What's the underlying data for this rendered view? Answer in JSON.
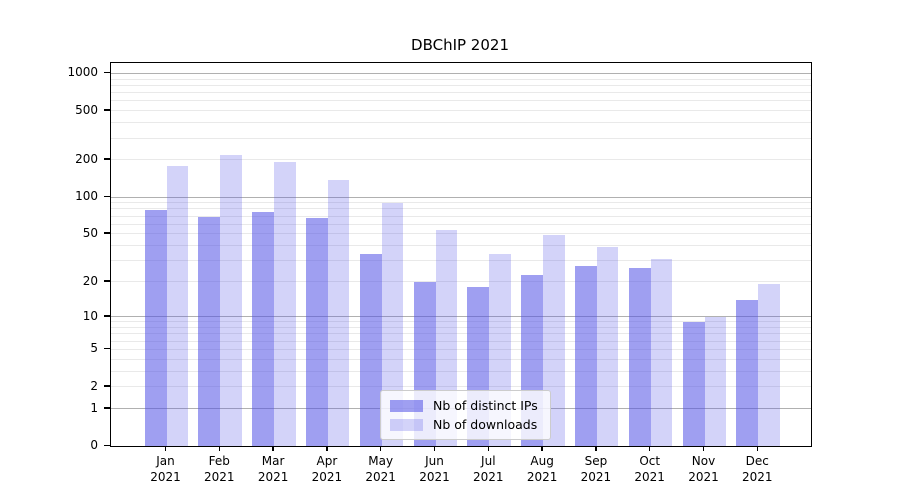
{
  "figure": {
    "title": "DBChIP 2021",
    "background_color": "#ffffff",
    "frame_color": "#000000",
    "grid_major_color": "#b0b0b0",
    "grid_minor_color": "#e9e9e9"
  },
  "chart_data": {
    "type": "bar",
    "title": "DBChIP 2021",
    "xlabel": "",
    "ylabel": "",
    "categories": [
      "Jan 2021",
      "Feb 2021",
      "Mar 2021",
      "Apr 2021",
      "May 2021",
      "Jun 2021",
      "Jul 2021",
      "Aug 2021",
      "Sep 2021",
      "Oct 2021",
      "Nov 2021",
      "Dec 2021"
    ],
    "series": [
      {
        "name": "Nb of distinct IPs",
        "color": "rgba(80,80,230,0.55)",
        "values": [
          78,
          69,
          76,
          68,
          34,
          20,
          18,
          23,
          27,
          26,
          9,
          14
        ]
      },
      {
        "name": "Nb of downloads",
        "color": "rgba(80,80,230,0.25)",
        "values": [
          178,
          220,
          192,
          137,
          89,
          54,
          34,
          49,
          39,
          31,
          10,
          19
        ]
      }
    ],
    "yscale": "log10(1+x)",
    "y_ticks": [
      0,
      1,
      2,
      5,
      10,
      20,
      50,
      100,
      200,
      500,
      1000
    ],
    "y_grid_major": [
      1,
      10,
      100,
      1000
    ],
    "ylim": [
      0,
      1200
    ],
    "grid": "horizontal",
    "legend_position": "lower-center-inside"
  },
  "legend": {
    "items": [
      {
        "label": "Nb of distinct IPs",
        "color": "rgba(80,80,230,0.55)"
      },
      {
        "label": "Nb of downloads",
        "color": "rgba(80,80,230,0.25)"
      }
    ]
  }
}
